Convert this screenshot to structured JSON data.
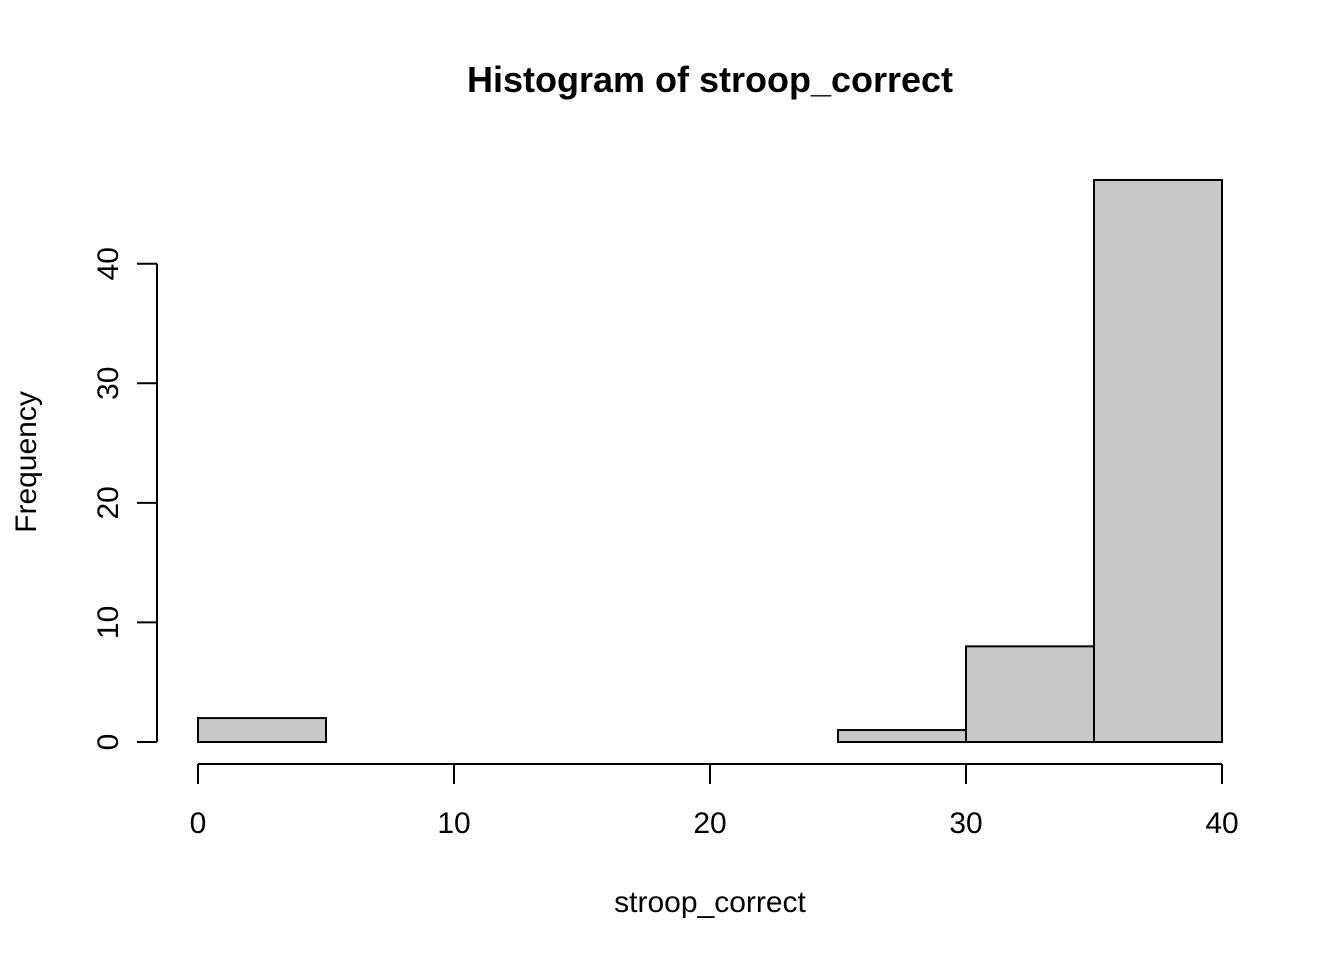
{
  "chart_data": {
    "type": "bar",
    "title": "Histogram of stroop_correct",
    "xlabel": "stroop_correct",
    "ylabel": "Frequency",
    "xlim": [
      0,
      40
    ],
    "ylim": [
      0,
      47
    ],
    "x_ticks": [
      0,
      10,
      20,
      30,
      40
    ],
    "y_ticks": [
      0,
      10,
      20,
      30,
      40
    ],
    "bins": [
      {
        "x0": 0,
        "x1": 5,
        "count": 2
      },
      {
        "x0": 5,
        "x1": 10,
        "count": 0
      },
      {
        "x0": 10,
        "x1": 15,
        "count": 0
      },
      {
        "x0": 15,
        "x1": 20,
        "count": 0
      },
      {
        "x0": 20,
        "x1": 25,
        "count": 0
      },
      {
        "x0": 25,
        "x1": 30,
        "count": 1
      },
      {
        "x0": 30,
        "x1": 35,
        "count": 8
      },
      {
        "x0": 35,
        "x1": 40,
        "count": 47
      }
    ],
    "bar_color": "#c8c8c8",
    "grid": false
  }
}
